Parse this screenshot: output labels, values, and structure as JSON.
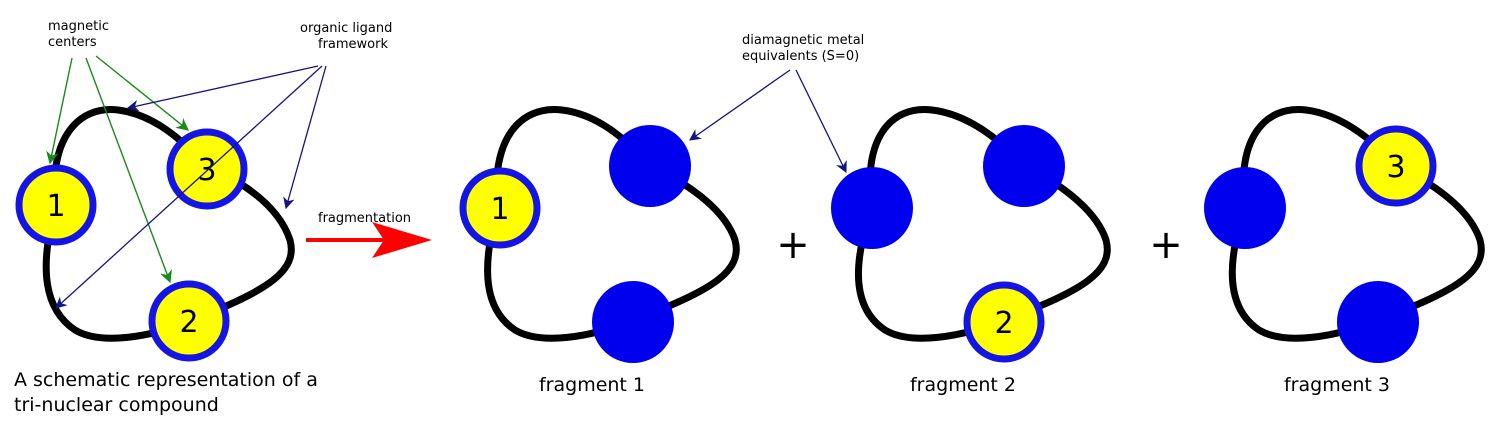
{
  "colors": {
    "magnetic_fill": "#ffff00",
    "magnetic_stroke": "#1414e6",
    "diamagnetic_fill": "#0000ee",
    "ring": "#000000",
    "green_arrow": "#1a8a1a",
    "blue_arrow": "#141480",
    "red_arrow": "#ff0000"
  },
  "annotations": {
    "magnetic_centers": [
      "magnetic",
      "centers"
    ],
    "organic_ligand": [
      "organic ligand",
      "framework"
    ],
    "diamagnetic": [
      "diamagnetic metal",
      "equivalents (S=0)"
    ],
    "fragmentation": "fragmentation"
  },
  "compound": {
    "caption": [
      "A schematic representation of a",
      "tri-nuclear compound"
    ],
    "nodes": [
      {
        "label": "1",
        "type": "magnetic"
      },
      {
        "label": "3",
        "type": "magnetic"
      },
      {
        "label": "2",
        "type": "magnetic"
      }
    ]
  },
  "fragments": [
    {
      "caption": "fragment 1",
      "nodes": [
        {
          "label": "1",
          "type": "magnetic"
        },
        {
          "label": "",
          "type": "diamagnetic"
        },
        {
          "label": "",
          "type": "diamagnetic"
        }
      ]
    },
    {
      "caption": "fragment 2",
      "nodes": [
        {
          "label": "",
          "type": "diamagnetic"
        },
        {
          "label": "",
          "type": "diamagnetic"
        },
        {
          "label": "2",
          "type": "magnetic"
        }
      ]
    },
    {
      "caption": "fragment 3",
      "nodes": [
        {
          "label": "",
          "type": "diamagnetic"
        },
        {
          "label": "3",
          "type": "magnetic"
        },
        {
          "label": "",
          "type": "diamagnetic"
        }
      ]
    }
  ],
  "operators": [
    "+",
    "+"
  ]
}
